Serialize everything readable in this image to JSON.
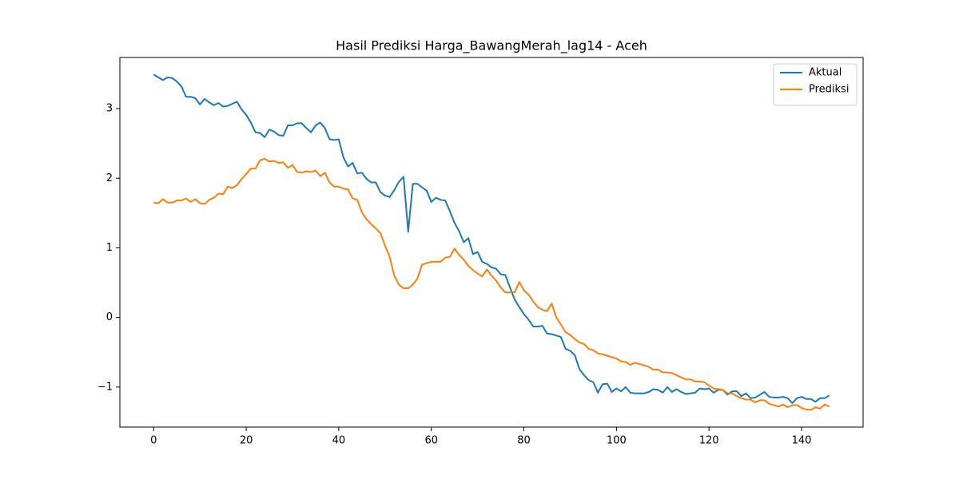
{
  "chart_data": {
    "type": "line",
    "title": "Hasil Prediksi Harga_BawangMerah_lag14 - Aceh",
    "x": [
      0,
      1,
      2,
      3,
      4,
      5,
      6,
      7,
      8,
      9,
      10,
      11,
      12,
      13,
      14,
      15,
      16,
      17,
      18,
      19,
      20,
      21,
      22,
      23,
      24,
      25,
      26,
      27,
      28,
      29,
      30,
      31,
      32,
      33,
      34,
      35,
      36,
      37,
      38,
      39,
      40,
      41,
      42,
      43,
      44,
      45,
      46,
      47,
      48,
      49,
      50,
      51,
      52,
      53,
      54,
      55,
      56,
      57,
      58,
      59,
      60,
      61,
      62,
      63,
      64,
      65,
      66,
      67,
      68,
      69,
      70,
      71,
      72,
      73,
      74,
      75,
      76,
      77,
      78,
      79,
      80,
      81,
      82,
      83,
      84,
      85,
      86,
      87,
      88,
      89,
      90,
      91,
      92,
      93,
      94,
      95,
      96,
      97,
      98,
      99,
      100,
      101,
      102,
      103,
      104,
      105,
      106,
      107,
      108,
      109,
      110,
      111,
      112,
      113,
      114,
      115,
      116,
      117,
      118,
      119,
      120,
      121,
      122,
      123,
      124,
      125,
      126,
      127,
      128,
      129,
      130,
      131,
      132,
      133,
      134,
      135,
      136,
      137,
      138,
      139,
      140,
      141,
      142,
      143,
      144,
      145,
      146
    ],
    "series": [
      {
        "name": "Aktual",
        "color": "#1f77b4",
        "values": [
          3.49,
          3.45,
          3.41,
          3.45,
          3.44,
          3.39,
          3.32,
          3.17,
          3.17,
          3.15,
          3.06,
          3.14,
          3.09,
          3.05,
          3.08,
          3.03,
          3.04,
          3.07,
          3.1,
          2.99,
          2.91,
          2.8,
          2.66,
          2.65,
          2.59,
          2.7,
          2.67,
          2.62,
          2.61,
          2.76,
          2.76,
          2.79,
          2.79,
          2.72,
          2.66,
          2.76,
          2.8,
          2.72,
          2.56,
          2.55,
          2.56,
          2.3,
          2.17,
          2.22,
          2.07,
          2.08,
          1.99,
          1.94,
          1.94,
          1.8,
          1.75,
          1.73,
          1.83,
          1.95,
          2.02,
          1.23,
          1.92,
          1.92,
          1.87,
          1.82,
          1.66,
          1.72,
          1.69,
          1.68,
          1.53,
          1.36,
          1.24,
          1.08,
          1.14,
          0.91,
          0.94,
          0.8,
          0.77,
          0.72,
          0.7,
          0.62,
          0.61,
          0.43,
          0.26,
          0.15,
          0.05,
          -0.03,
          -0.13,
          -0.13,
          -0.12,
          -0.23,
          -0.24,
          -0.26,
          -0.28,
          -0.45,
          -0.48,
          -0.54,
          -0.74,
          -0.83,
          -0.9,
          -0.93,
          -1.08,
          -0.96,
          -0.95,
          -1.07,
          -1.02,
          -1.06,
          -1.0,
          -1.08,
          -1.09,
          -1.09,
          -1.09,
          -1.07,
          -1.03,
          -1.04,
          -1.08,
          -1.0,
          -1.07,
          -1.03,
          -1.07,
          -1.1,
          -1.09,
          -1.08,
          -1.02,
          -1.03,
          -1.02,
          -1.08,
          -1.04,
          -1.04,
          -1.11,
          -1.06,
          -1.06,
          -1.13,
          -1.09,
          -1.16,
          -1.15,
          -1.11,
          -1.07,
          -1.14,
          -1.15,
          -1.15,
          -1.14,
          -1.16,
          -1.23,
          -1.16,
          -1.14,
          -1.17,
          -1.17,
          -1.21,
          -1.16,
          -1.16,
          -1.12
        ]
      },
      {
        "name": "Prediksi",
        "color": "#ff7f0e",
        "values": [
          1.65,
          1.64,
          1.7,
          1.65,
          1.65,
          1.68,
          1.68,
          1.71,
          1.66,
          1.7,
          1.64,
          1.63,
          1.69,
          1.72,
          1.78,
          1.77,
          1.88,
          1.86,
          1.9,
          1.99,
          2.06,
          2.14,
          2.14,
          2.26,
          2.28,
          2.24,
          2.25,
          2.22,
          2.23,
          2.15,
          2.19,
          2.09,
          2.08,
          2.1,
          2.09,
          2.11,
          2.03,
          2.08,
          1.94,
          1.88,
          1.88,
          1.85,
          1.84,
          1.71,
          1.69,
          1.51,
          1.41,
          1.34,
          1.28,
          1.21,
          1.03,
          0.87,
          0.6,
          0.47,
          0.42,
          0.42,
          0.47,
          0.56,
          0.76,
          0.78,
          0.8,
          0.8,
          0.8,
          0.86,
          0.87,
          0.99,
          0.9,
          0.83,
          0.74,
          0.68,
          0.63,
          0.59,
          0.69,
          0.6,
          0.53,
          0.43,
          0.36,
          0.36,
          0.36,
          0.51,
          0.39,
          0.33,
          0.23,
          0.15,
          0.11,
          0.09,
          0.2,
          0.0,
          -0.1,
          -0.21,
          -0.25,
          -0.31,
          -0.36,
          -0.38,
          -0.45,
          -0.47,
          -0.52,
          -0.53,
          -0.55,
          -0.57,
          -0.59,
          -0.63,
          -0.64,
          -0.68,
          -0.65,
          -0.67,
          -0.69,
          -0.71,
          -0.75,
          -0.75,
          -0.79,
          -0.79,
          -0.8,
          -0.83,
          -0.86,
          -0.89,
          -0.89,
          -0.92,
          -0.92,
          -0.93,
          -0.98,
          -1.02,
          -1.03,
          -1.04,
          -1.09,
          -1.09,
          -1.13,
          -1.16,
          -1.18,
          -1.18,
          -1.22,
          -1.19,
          -1.19,
          -1.24,
          -1.26,
          -1.28,
          -1.25,
          -1.29,
          -1.26,
          -1.26,
          -1.3,
          -1.32,
          -1.33,
          -1.29,
          -1.31,
          -1.25,
          -1.28
        ]
      }
    ],
    "xlim": [
      -7.3,
      153.3
    ],
    "xticks": [
      0,
      20,
      40,
      60,
      80,
      100,
      120,
      140
    ],
    "ylim": [
      -1.575,
      3.735
    ],
    "yticks": [
      {
        "value": -1,
        "label": "−1"
      },
      0,
      1,
      2,
      3
    ],
    "grid": false,
    "legend": "upper right"
  }
}
